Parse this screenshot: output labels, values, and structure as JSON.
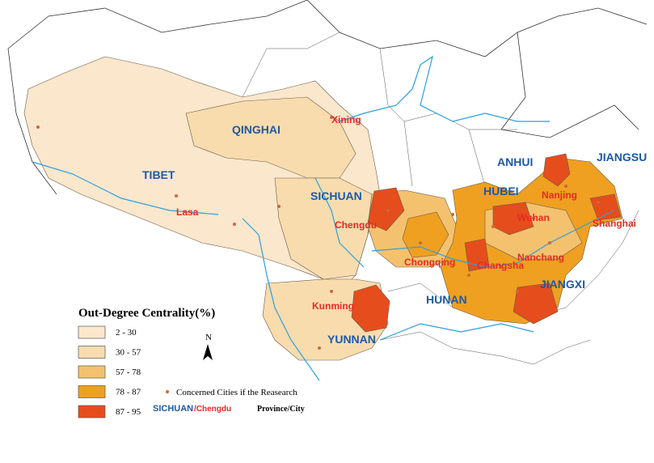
{
  "provinces": [
    "QINGHAI",
    "TIBET",
    "SICHUAN",
    "ANHUI",
    "JIANGSU",
    "HUBEI",
    "HUNAN",
    "JIANGXI",
    "YUNNAN"
  ],
  "cities": [
    "Xining",
    "Lasa",
    "Chengdu",
    "Chongqing",
    "Kunming",
    "Wuhan",
    "Nanjing",
    "Shanghai",
    "Changsha",
    "Nanchang"
  ],
  "legend": {
    "title": "Out-Degree Centrality(%)",
    "classes": [
      {
        "label": "2 - 30",
        "color": "#fbe7cc"
      },
      {
        "label": "30 - 57",
        "color": "#f8dcae"
      },
      {
        "label": "57 - 78",
        "color": "#f4c26e"
      },
      {
        "label": "78 - 87",
        "color": "#efa020"
      },
      {
        "label": "87 - 95",
        "color": "#e64d1c"
      }
    ],
    "cities_note": "Concerned Cities if the Reasearch",
    "example_province": "SICHUAN",
    "example_city": "/Chengdu",
    "example_note": "Province/City",
    "north": "N"
  }
}
